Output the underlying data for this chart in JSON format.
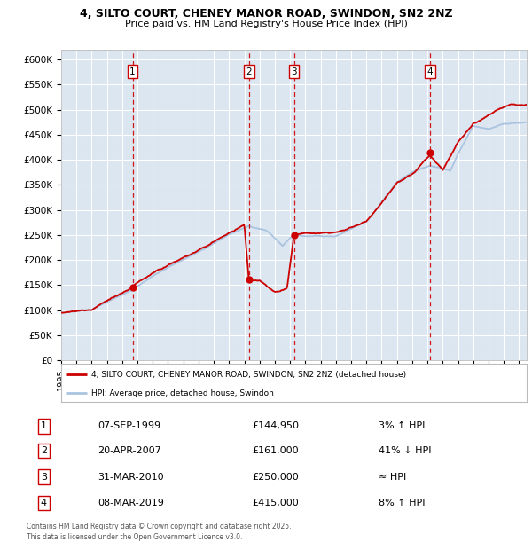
{
  "title_line1": "4, SILTO COURT, CHENEY MANOR ROAD, SWINDON, SN2 2NZ",
  "title_line2": "Price paid vs. HM Land Registry's House Price Index (HPI)",
  "ylim": [
    0,
    620000
  ],
  "yticks": [
    0,
    50000,
    100000,
    150000,
    200000,
    250000,
    300000,
    350000,
    400000,
    450000,
    500000,
    550000,
    600000
  ],
  "ytick_labels": [
    "£0",
    "£50K",
    "£100K",
    "£150K",
    "£200K",
    "£250K",
    "£300K",
    "£350K",
    "£400K",
    "£450K",
    "£500K",
    "£550K",
    "£600K"
  ],
  "bg_color": "#dce6f1",
  "grid_color": "#ffffff",
  "line_color_red": "#cc0000",
  "line_color_blue": "#aac4e0",
  "sale_dates": [
    1999.68,
    2007.3,
    2010.25,
    2019.18
  ],
  "sale_prices": [
    144950,
    161000,
    250000,
    415000
  ],
  "sale_labels": [
    "1",
    "2",
    "3",
    "4"
  ],
  "vline_color": "#cc0000",
  "sale_marker_color": "#cc0000",
  "legend_red_label": "4, SILTO COURT, CHENEY MANOR ROAD, SWINDON, SN2 2NZ (detached house)",
  "legend_blue_label": "HPI: Average price, detached house, Swindon",
  "table_rows": [
    {
      "num": "1",
      "date": "07-SEP-1999",
      "price": "£144,950",
      "hpi": "3% ↑ HPI"
    },
    {
      "num": "2",
      "date": "20-APR-2007",
      "price": "£161,000",
      "hpi": "41% ↓ HPI"
    },
    {
      "num": "3",
      "date": "31-MAR-2010",
      "price": "£250,000",
      "hpi": "≈ HPI"
    },
    {
      "num": "4",
      "date": "08-MAR-2019",
      "price": "£415,000",
      "hpi": "8% ↑ HPI"
    }
  ],
  "footer": "Contains HM Land Registry data © Crown copyright and database right 2025.\nThis data is licensed under the Open Government Licence v3.0.",
  "xmin": 1995.0,
  "xmax": 2025.5
}
